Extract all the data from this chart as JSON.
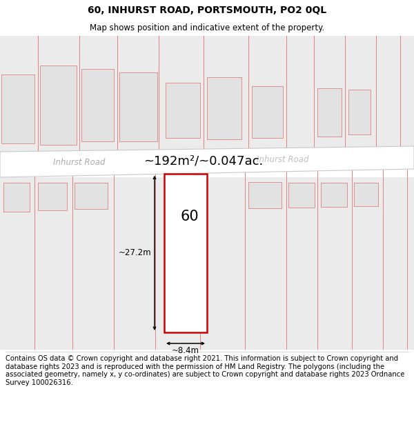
{
  "title": "60, INHURST ROAD, PORTSMOUTH, PO2 0QL",
  "subtitle": "Map shows position and indicative extent of the property.",
  "footer": "Contains OS data © Crown copyright and database right 2021. This information is subject to Crown copyright and database rights 2023 and is reproduced with the permission of HM Land Registry. The polygons (including the associated geometry, namely x, y co-ordinates) are subject to Crown copyright and database rights 2023 Ordnance Survey 100026316.",
  "map_bg": "#f0f0f0",
  "plot_outline_color": "#cc0000",
  "plot_fill_color": "#ffffff",
  "building_fill": "#e2e2e2",
  "building_outline": "#e08080",
  "road_bg": "#ffffff",
  "road_label_1": "Inhurst Road",
  "road_label_2": "Inhurst Road",
  "area_label": "~192m²/~0.047ac.",
  "number_label": "60",
  "dim_width": "~8.4m",
  "dim_height": "~27.2m",
  "footer_fontsize": 7.2,
  "title_fontsize": 10,
  "subtitle_fontsize": 8.5
}
